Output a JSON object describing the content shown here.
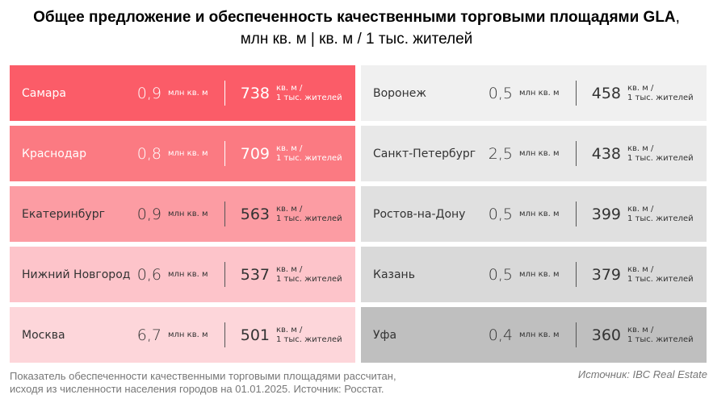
{
  "title": {
    "bold": "Общее предложение и обеспеченность качественными торговыми площадями GLA",
    "tail": ",",
    "line2": "млн кв. м | кв. м / 1 тыс. жителей"
  },
  "units": {
    "supply": "млн кв. м",
    "density_l1": "кв. м /",
    "density_l2": "1 тыс. жителей"
  },
  "left": [
    {
      "city": "Самара",
      "supply": "0,9",
      "density": "738",
      "bg": "#fb5c68",
      "text": "light"
    },
    {
      "city": "Краснодар",
      "supply": "0,8",
      "density": "709",
      "bg": "#fb7a82",
      "text": "light"
    },
    {
      "city": "Екатеринбург",
      "supply": "0,9",
      "density": "563",
      "bg": "#fc9ca3",
      "text": "dark"
    },
    {
      "city": "Нижний Новгород",
      "supply": "0,6",
      "density": "537",
      "bg": "#fdc4ca",
      "text": "dark"
    },
    {
      "city": "Москва",
      "supply": "6,7",
      "density": "501",
      "bg": "#fdd6da",
      "text": "dark"
    }
  ],
  "right": [
    {
      "city": "Воронеж",
      "supply": "0,5",
      "density": "458",
      "bg": "#f0f0f0",
      "text": "dark"
    },
    {
      "city": "Санкт-Петербург",
      "supply": "2,5",
      "density": "438",
      "bg": "#e8e8e8",
      "text": "dark"
    },
    {
      "city": "Ростов-на-Дону",
      "supply": "0,5",
      "density": "399",
      "bg": "#e0e0e0",
      "text": "dark"
    },
    {
      "city": "Казань",
      "supply": "0,5",
      "density": "379",
      "bg": "#d9d9d9",
      "text": "dark"
    },
    {
      "city": "Уфа",
      "supply": "0,4",
      "density": "360",
      "bg": "#bfbfbf",
      "text": "dark"
    }
  ],
  "footnote": {
    "line1": "Показатель обеспеченности качественными торговыми площадями рассчитан,",
    "line2": "исходя из численности населения городов на 01.01.2025. Источник: Росстат."
  },
  "source": "Источник: IBC Real Estate"
}
